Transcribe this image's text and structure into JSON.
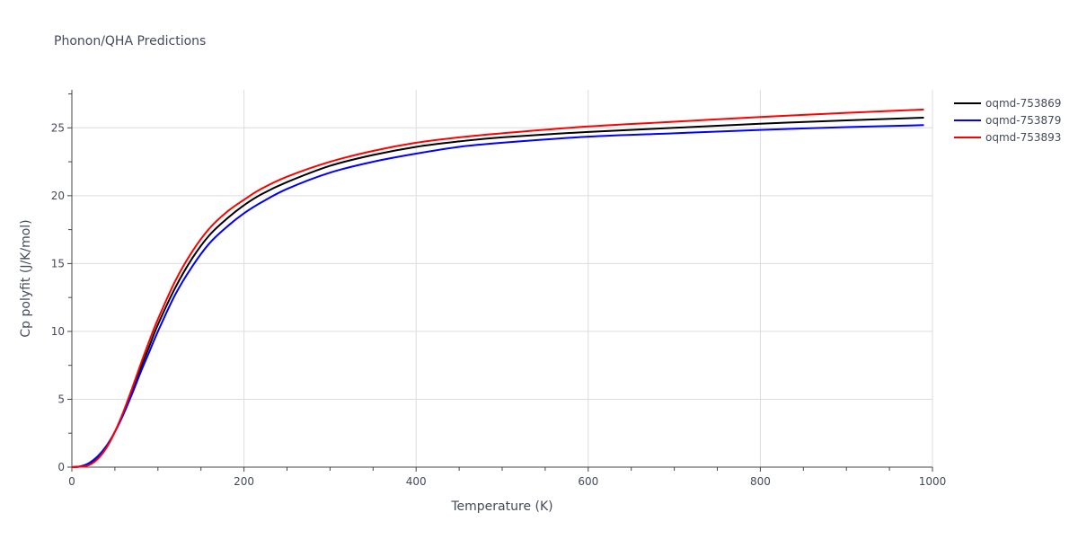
{
  "chart_data": {
    "type": "line",
    "title": "Phonon/QHA Predictions",
    "xlabel": "Temperature (K)",
    "ylabel": "Cp polyfit (J/K/mol)",
    "xlim": [
      0,
      1000
    ],
    "ylim": [
      0,
      27.8
    ],
    "xticks": [
      0,
      200,
      400,
      600,
      800,
      1000
    ],
    "yticks": [
      0,
      5,
      10,
      15,
      20,
      25
    ],
    "grid": true,
    "legend_position": "top-right",
    "series": [
      {
        "name": "oqmd-753869",
        "color": "#000000",
        "x": [
          0,
          10,
          20,
          30,
          40,
          50,
          60,
          70,
          80,
          90,
          100,
          120,
          140,
          160,
          180,
          200,
          220,
          250,
          300,
          350,
          400,
          450,
          500,
          600,
          700,
          800,
          900,
          990
        ],
        "y": [
          0,
          0.05,
          0.25,
          0.75,
          1.5,
          2.6,
          4.0,
          5.6,
          7.3,
          8.9,
          10.5,
          13.2,
          15.4,
          17.1,
          18.3,
          19.3,
          20.1,
          21.0,
          22.2,
          23.0,
          23.6,
          24.0,
          24.3,
          24.7,
          25.0,
          25.3,
          25.55,
          25.75
        ]
      },
      {
        "name": "oqmd-753879",
        "color": "#0000ff",
        "x": [
          0,
          10,
          20,
          30,
          40,
          50,
          60,
          70,
          80,
          90,
          100,
          120,
          140,
          160,
          180,
          200,
          220,
          250,
          300,
          350,
          400,
          450,
          500,
          600,
          700,
          800,
          900,
          990
        ],
        "y": [
          0,
          0.06,
          0.3,
          0.8,
          1.55,
          2.6,
          3.9,
          5.4,
          7.0,
          8.5,
          10.0,
          12.7,
          14.8,
          16.5,
          17.7,
          18.7,
          19.5,
          20.5,
          21.7,
          22.5,
          23.1,
          23.6,
          23.9,
          24.35,
          24.6,
          24.85,
          25.05,
          25.2
        ]
      },
      {
        "name": "oqmd-753893",
        "color": "#ff0000",
        "x": [
          0,
          10,
          20,
          30,
          40,
          50,
          60,
          70,
          80,
          90,
          100,
          120,
          140,
          160,
          180,
          200,
          220,
          250,
          300,
          350,
          400,
          450,
          500,
          600,
          700,
          800,
          900,
          990
        ],
        "y": [
          0,
          0.03,
          0.15,
          0.6,
          1.4,
          2.6,
          4.1,
          5.8,
          7.6,
          9.3,
          10.9,
          13.7,
          15.9,
          17.6,
          18.8,
          19.7,
          20.5,
          21.4,
          22.5,
          23.3,
          23.9,
          24.3,
          24.6,
          25.1,
          25.45,
          25.8,
          26.1,
          26.35
        ]
      }
    ]
  }
}
